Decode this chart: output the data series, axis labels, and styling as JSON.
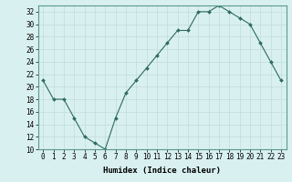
{
  "x": [
    0,
    1,
    2,
    3,
    4,
    5,
    6,
    7,
    8,
    9,
    10,
    11,
    12,
    13,
    14,
    15,
    16,
    17,
    18,
    19,
    20,
    21,
    22,
    23
  ],
  "y": [
    21,
    18,
    18,
    15,
    12,
    11,
    10,
    15,
    19,
    21,
    23,
    25,
    27,
    29,
    29,
    32,
    32,
    33,
    32,
    31,
    30,
    27,
    24,
    21
  ],
  "line_color": "#2e6b5e",
  "marker": "D",
  "marker_size": 2.0,
  "bg_color": "#d9f0f0",
  "grid_major_color": "#c8e8e0",
  "grid_minor_color": "#ddf4f0",
  "xlabel": "Humidex (Indice chaleur)",
  "ylim": [
    10,
    33
  ],
  "xlim": [
    -0.5,
    23.5
  ],
  "yticks": [
    10,
    12,
    14,
    16,
    18,
    20,
    22,
    24,
    26,
    28,
    30,
    32
  ],
  "xticks": [
    0,
    1,
    2,
    3,
    4,
    5,
    6,
    7,
    8,
    9,
    10,
    11,
    12,
    13,
    14,
    15,
    16,
    17,
    18,
    19,
    20,
    21,
    22,
    23
  ],
  "xtick_labels": [
    "0",
    "1",
    "2",
    "3",
    "4",
    "5",
    "6",
    "7",
    "8",
    "9",
    "10",
    "11",
    "12",
    "13",
    "14",
    "15",
    "16",
    "17",
    "18",
    "19",
    "20",
    "21",
    "22",
    "23"
  ],
  "ytick_labels": [
    "10",
    "12",
    "14",
    "16",
    "18",
    "20",
    "22",
    "24",
    "26",
    "28",
    "30",
    "32"
  ],
  "tick_fontsize": 5.5,
  "xlabel_fontsize": 6.5
}
